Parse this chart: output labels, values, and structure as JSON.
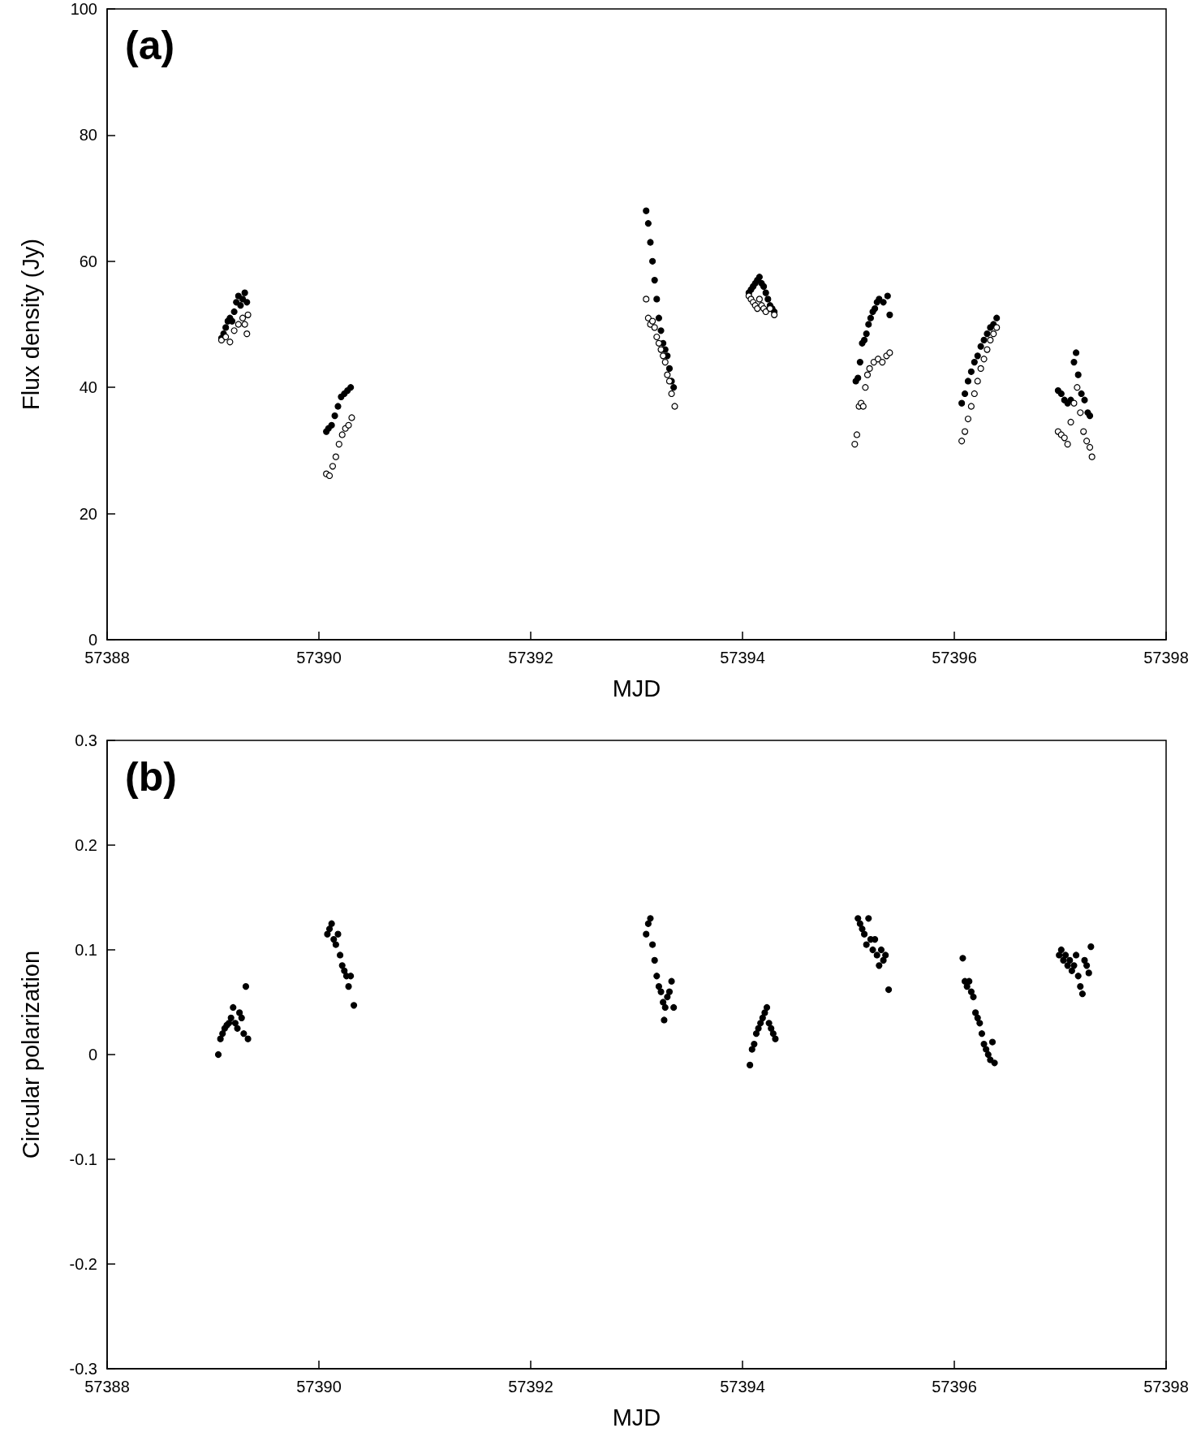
{
  "chart_data": [
    {
      "type": "scatter",
      "xlabel": "MJD",
      "ylabel": "Flux density (Jy)",
      "annotations": [
        "(a)"
      ],
      "xlim": [
        57388,
        57398
      ],
      "xticks": [
        57388,
        57390,
        57392,
        57394,
        57396,
        57398
      ],
      "ylim": [
        0,
        100
      ],
      "yticks": [
        0,
        20,
        40,
        60,
        80,
        100
      ],
      "grid": false,
      "marker": "circle",
      "series": [
        {
          "color": "#000000",
          "x": [
            57389.08,
            57389.1,
            57389.12,
            57389.14,
            57389.16,
            57389.18,
            57389.2,
            57389.22,
            57389.24,
            57389.26,
            57389.28,
            57389.3,
            57389.32,
            57390.07,
            57390.09,
            57390.12,
            57390.15,
            57390.18,
            57390.21,
            57390.24,
            57390.27,
            57390.3,
            57393.09,
            57393.11,
            57393.13,
            57393.15,
            57393.17,
            57393.19,
            57393.21,
            57393.23,
            57393.25,
            57393.27,
            57393.29,
            57393.31,
            57393.33,
            57393.35,
            57394.06,
            57394.08,
            57394.1,
            57394.12,
            57394.14,
            57394.16,
            57394.18,
            57394.2,
            57394.22,
            57394.24,
            57394.26,
            57394.28,
            57394.3,
            57395.07,
            57395.09,
            57395.11,
            57395.13,
            57395.15,
            57395.17,
            57395.19,
            57395.21,
            57395.23,
            57395.25,
            57395.27,
            57395.29,
            57395.33,
            57395.37,
            57395.39,
            57396.07,
            57396.1,
            57396.13,
            57396.16,
            57396.19,
            57396.22,
            57396.25,
            57396.28,
            57396.31,
            57396.34,
            57396.37,
            57396.4,
            57396.98,
            57397.01,
            57397.04,
            57397.07,
            57397.1,
            57397.13,
            57397.15,
            57397.17,
            57397.2,
            57397.23,
            57397.26,
            57397.28
          ],
          "values": [
            47.8,
            48.5,
            49.5,
            50.5,
            51,
            50.5,
            52,
            53.5,
            54.5,
            53,
            54,
            55,
            53.5,
            33,
            33.5,
            34,
            35.5,
            37,
            38.5,
            39,
            39.5,
            40,
            68,
            66,
            63,
            60,
            57,
            54,
            51,
            49,
            47,
            46,
            45,
            43,
            41,
            40,
            55,
            55.5,
            56,
            56.5,
            57,
            57.5,
            56.5,
            56,
            55,
            54,
            53,
            52.5,
            52,
            41,
            41.5,
            44,
            47,
            47.5,
            48.5,
            50,
            51,
            52,
            52.5,
            53.5,
            54,
            53.5,
            54.5,
            51.5,
            37.5,
            39,
            41,
            42.5,
            44,
            45,
            46.5,
            47.5,
            48.5,
            49.5,
            50,
            51,
            39.5,
            39,
            38,
            37.5,
            38,
            44,
            45.5,
            42,
            39,
            38,
            36,
            35.5
          ]
        },
        {
          "color": "#ffffff",
          "x": [
            57389.08,
            57389.12,
            57389.16,
            57389.2,
            57389.24,
            57389.28,
            57389.3,
            57389.32,
            57389.33,
            57390.07,
            57390.1,
            57390.13,
            57390.16,
            57390.19,
            57390.22,
            57390.25,
            57390.28,
            57390.31,
            57393.09,
            57393.11,
            57393.13,
            57393.15,
            57393.17,
            57393.19,
            57393.21,
            57393.23,
            57393.25,
            57393.27,
            57393.29,
            57393.31,
            57393.33,
            57393.36,
            57394.06,
            57394.08,
            57394.1,
            57394.12,
            57394.14,
            57394.16,
            57394.18,
            57394.2,
            57394.22,
            57394.26,
            57394.3,
            57395.06,
            57395.08,
            57395.1,
            57395.12,
            57395.14,
            57395.16,
            57395.18,
            57395.2,
            57395.24,
            57395.28,
            57395.32,
            57395.36,
            57395.39,
            57396.07,
            57396.1,
            57396.13,
            57396.16,
            57396.19,
            57396.22,
            57396.25,
            57396.28,
            57396.31,
            57396.34,
            57396.37,
            57396.4,
            57396.98,
            57397.01,
            57397.04,
            57397.07,
            57397.1,
            57397.13,
            57397.16,
            57397.19,
            57397.22,
            57397.25,
            57397.28,
            57397.3
          ],
          "values": [
            47.5,
            48,
            47.2,
            49,
            50,
            51,
            50,
            48.5,
            51.5,
            26.3,
            26,
            27.5,
            29,
            31,
            32.5,
            33.5,
            34,
            35.2,
            54,
            51,
            50,
            50.5,
            49.5,
            48,
            47,
            46,
            45,
            44,
            42,
            41,
            39,
            37,
            54.5,
            54,
            53.5,
            53,
            52.5,
            54,
            53,
            52.5,
            52,
            52.5,
            51.5,
            31,
            32.5,
            37,
            37.5,
            37,
            40,
            42,
            43,
            44,
            44.5,
            44,
            45,
            45.5,
            31.5,
            33,
            35,
            37,
            39,
            41,
            43,
            44.5,
            46,
            47.5,
            48.5,
            49.5,
            33,
            32.5,
            32,
            31,
            34.5,
            37.5,
            40,
            36,
            33,
            31.5,
            30.5,
            29
          ]
        }
      ]
    },
    {
      "type": "scatter",
      "xlabel": "MJD",
      "ylabel": "Circular polarization",
      "annotations": [
        "(b)"
      ],
      "xlim": [
        57388,
        57398
      ],
      "xticks": [
        57388,
        57390,
        57392,
        57394,
        57396,
        57398
      ],
      "ylim": [
        -0.3,
        0.3
      ],
      "yticks": [
        -0.3,
        -0.2,
        -0.1,
        0,
        0.1,
        0.2,
        0.3
      ],
      "grid": false,
      "marker": "circle",
      "series": [
        {
          "color": "#000000",
          "x": [
            57389.05,
            57389.07,
            57389.09,
            57389.11,
            57389.13,
            57389.15,
            57389.17,
            57389.19,
            57389.21,
            57389.23,
            57389.25,
            57389.27,
            57389.29,
            57389.31,
            57389.33,
            57390.08,
            57390.1,
            57390.12,
            57390.14,
            57390.16,
            57390.18,
            57390.2,
            57390.22,
            57390.24,
            57390.26,
            57390.28,
            57390.3,
            57390.33,
            57393.09,
            57393.11,
            57393.13,
            57393.15,
            57393.17,
            57393.19,
            57393.21,
            57393.23,
            57393.25,
            57393.27,
            57393.29,
            57393.31,
            57393.33,
            57393.35,
            57393.26,
            57394.07,
            57394.09,
            57394.11,
            57394.13,
            57394.15,
            57394.17,
            57394.19,
            57394.21,
            57394.23,
            57394.25,
            57394.27,
            57394.29,
            57394.31,
            57395.09,
            57395.11,
            57395.13,
            57395.15,
            57395.17,
            57395.19,
            57395.21,
            57395.23,
            57395.25,
            57395.27,
            57395.29,
            57395.31,
            57395.33,
            57395.35,
            57395.38,
            57396.08,
            57396.1,
            57396.12,
            57396.14,
            57396.16,
            57396.18,
            57396.2,
            57396.22,
            57396.24,
            57396.26,
            57396.28,
            57396.3,
            57396.32,
            57396.34,
            57396.36,
            57396.38,
            57396.99,
            57397.01,
            57397.03,
            57397.05,
            57397.07,
            57397.09,
            57397.11,
            57397.13,
            57397.15,
            57397.17,
            57397.19,
            57397.21,
            57397.23,
            57397.25,
            57397.27,
            57397.29
          ],
          "values": [
            0,
            0.015,
            0.02,
            0.025,
            0.028,
            0.03,
            0.035,
            0.045,
            0.03,
            0.025,
            0.04,
            0.035,
            0.02,
            0.065,
            0.015,
            0.115,
            0.12,
            0.125,
            0.11,
            0.105,
            0.115,
            0.095,
            0.085,
            0.08,
            0.075,
            0.065,
            0.075,
            0.047,
            0.115,
            0.125,
            0.13,
            0.105,
            0.09,
            0.075,
            0.065,
            0.06,
            0.05,
            0.045,
            0.055,
            0.06,
            0.07,
            0.045,
            0.033,
            -0.01,
            0.005,
            0.01,
            0.02,
            0.025,
            0.03,
            0.035,
            0.04,
            0.045,
            0.03,
            0.025,
            0.02,
            0.015,
            0.13,
            0.125,
            0.12,
            0.115,
            0.105,
            0.13,
            0.11,
            0.1,
            0.11,
            0.095,
            0.085,
            0.1,
            0.09,
            0.095,
            0.062,
            0.092,
            0.07,
            0.065,
            0.07,
            0.06,
            0.055,
            0.04,
            0.035,
            0.03,
            0.02,
            0.01,
            0.005,
            0,
            -0.005,
            0.012,
            -0.008,
            0.095,
            0.1,
            0.09,
            0.095,
            0.085,
            0.09,
            0.08,
            0.085,
            0.095,
            0.075,
            0.065,
            0.058,
            0.09,
            0.085,
            0.078,
            0.103
          ]
        }
      ]
    }
  ]
}
